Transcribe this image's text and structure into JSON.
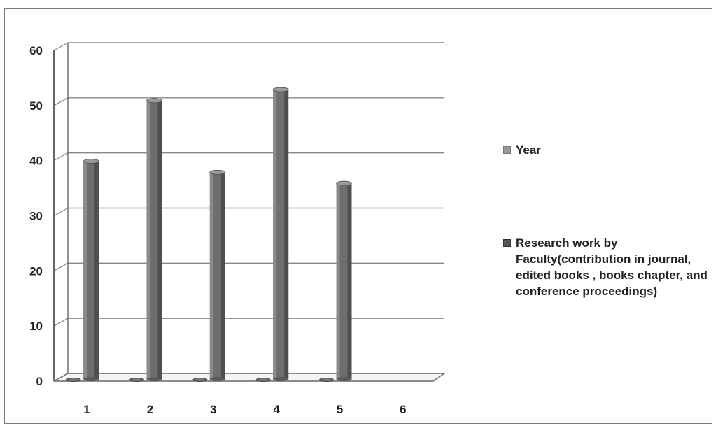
{
  "chart_data": {
    "type": "bar",
    "categories": [
      "1",
      "2",
      "3",
      "4",
      "5",
      "6"
    ],
    "series": [
      {
        "name": "Year",
        "values": [
          0,
          0,
          0,
          0,
          0,
          null
        ]
      },
      {
        "name": "Research work  by Faculty(contribution in journal, edited books , books chapter, and conference proceedings)",
        "values": [
          39,
          50,
          37,
          52,
          35,
          null
        ]
      }
    ],
    "yticks": [
      "0",
      "10",
      "20",
      "30",
      "40",
      "50",
      "60"
    ],
    "ylim": [
      0,
      60
    ],
    "title": "",
    "xlabel": "",
    "ylabel": "",
    "grid": true,
    "legend_position": "right",
    "colors": {
      "year": "#8c8c8c",
      "research": "#6b6b6b",
      "grid": "#888888"
    }
  }
}
